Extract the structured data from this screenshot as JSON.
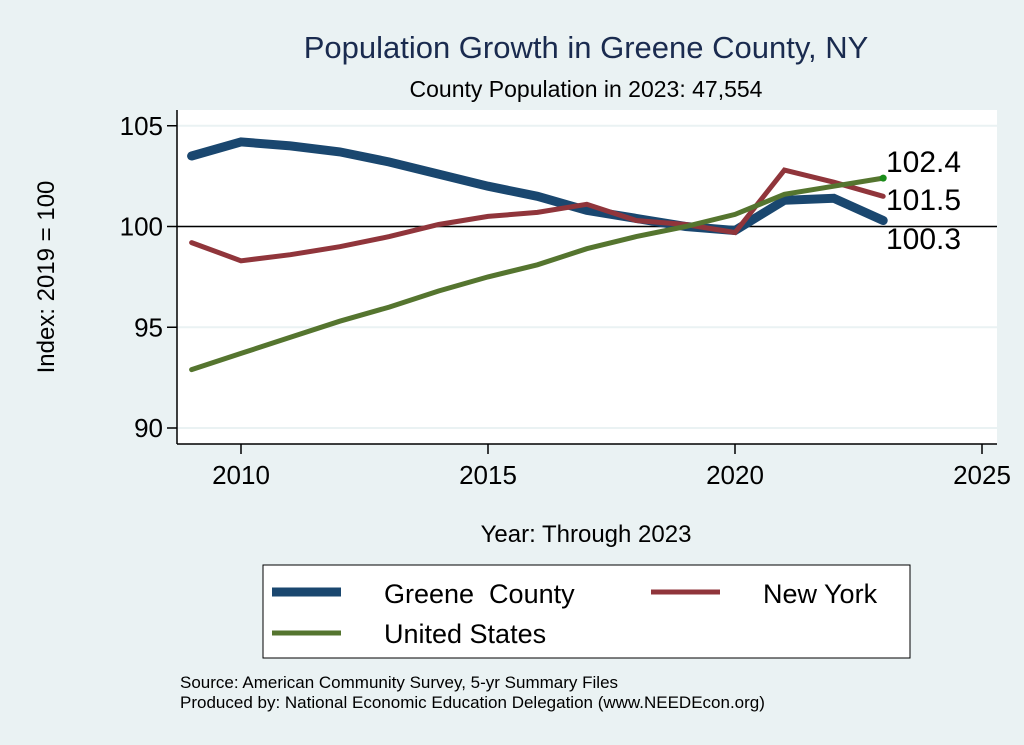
{
  "chart_data": {
    "type": "line",
    "title": "Population Growth in Greene County, NY",
    "subtitle": "County Population in 2023: 47,554",
    "xlabel": "Year: Through 2023",
    "ylabel": "Index: 2019 = 100",
    "xlim": [
      2009,
      2025
    ],
    "ylim": [
      90,
      105
    ],
    "xticks": [
      2010,
      2015,
      2020,
      2025
    ],
    "xtick_labels": [
      "2010",
      "2015",
      "2020",
      "2025"
    ],
    "yticks": [
      90,
      95,
      100,
      105
    ],
    "ytick_labels": [
      "90",
      "95",
      "100",
      "105"
    ],
    "reference_line": 100,
    "grid": true,
    "x": [
      2009,
      2010,
      2011,
      2012,
      2013,
      2014,
      2015,
      2016,
      2017,
      2018,
      2019,
      2020,
      2021,
      2022,
      2023
    ],
    "series": [
      {
        "name": "Greene  County",
        "color": "#1a476f",
        "values": [
          103.5,
          104.2,
          104.0,
          103.7,
          103.2,
          102.6,
          102.0,
          101.5,
          100.8,
          100.4,
          100.0,
          99.8,
          101.3,
          101.4,
          100.3
        ],
        "end_label": "100.3"
      },
      {
        "name": "New York",
        "color": "#90353b",
        "values": [
          99.2,
          98.3,
          98.6,
          99.0,
          99.5,
          100.1,
          100.5,
          100.7,
          101.1,
          100.3,
          100.1,
          99.7,
          102.8,
          102.2,
          101.5
        ],
        "end_label": "101.5"
      },
      {
        "name": "United States",
        "color": "#55752f",
        "values": [
          92.9,
          93.7,
          94.5,
          95.3,
          96.0,
          96.8,
          97.5,
          98.1,
          98.9,
          99.5,
          100.0,
          100.6,
          101.6,
          102.0,
          102.4
        ],
        "end_label": "102.4"
      }
    ],
    "legend": {
      "placement": "bottom",
      "entries": [
        "Greene  County",
        "New York",
        "United States"
      ]
    },
    "notes": [
      "Source: American Community Survey, 5-yr Summary Files",
      "Produced by: National Economic Education Delegation (www.NEEDEcon.org)"
    ],
    "colors": {
      "background": "#eaf2f3",
      "plot_background": "#ffffff",
      "title": "#1a2b4f",
      "end_marker": "#1a8c1a"
    }
  }
}
